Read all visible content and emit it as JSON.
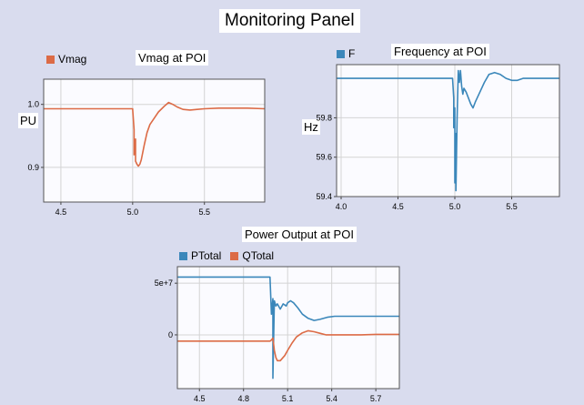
{
  "panel": {
    "title": "Monitoring Panel"
  },
  "colors": {
    "vmag": "#dc6b46",
    "freq": "#3b87ba",
    "ptotal": "#3b87ba",
    "qtotal": "#dc6b46",
    "plot_bg": "#fbfbff",
    "grid": "#d4d4d4"
  },
  "chart_data": [
    {
      "type": "line",
      "title": "Vmag at POI",
      "ylabel": "PU",
      "xlim": [
        4.38,
        5.92
      ],
      "ylim": [
        0.845,
        1.04
      ],
      "xticks": [
        4.5,
        5.0,
        5.5
      ],
      "xtick_labels": [
        "4.5",
        "5.0",
        "5.5"
      ],
      "yticks": [
        0.9,
        1.0
      ],
      "ytick_labels": [
        "0.9",
        "1.0"
      ],
      "grid": true,
      "legend_position": "top-left",
      "series": [
        {
          "name": "Vmag",
          "color": "#dc6b46",
          "x": [
            4.38,
            5.0,
            5.01,
            5.01,
            5.02,
            5.02,
            5.03,
            5.04,
            5.05,
            5.06,
            5.08,
            5.1,
            5.12,
            5.15,
            5.18,
            5.22,
            5.25,
            5.28,
            5.31,
            5.35,
            5.4,
            5.45,
            5.5,
            5.6,
            5.7,
            5.8,
            5.92
          ],
          "y": [
            0.993,
            0.993,
            0.96,
            0.92,
            0.945,
            0.91,
            0.905,
            0.902,
            0.905,
            0.912,
            0.935,
            0.955,
            0.968,
            0.978,
            0.988,
            0.997,
            1.003,
            1.0,
            0.996,
            0.992,
            0.991,
            0.992,
            0.993,
            0.994,
            0.994,
            0.994,
            0.993
          ]
        }
      ]
    },
    {
      "type": "line",
      "title": "Frequency at POI",
      "ylabel": "Hz",
      "xlim": [
        3.96,
        5.92
      ],
      "ylim": [
        59.4,
        60.07
      ],
      "xticks": [
        4.0,
        4.5,
        5.0,
        5.5
      ],
      "xtick_labels": [
        "4.0",
        "4.5",
        "5.0",
        "5.5"
      ],
      "yticks": [
        59.4,
        59.6,
        59.8
      ],
      "ytick_labels": [
        "59.4",
        "59.6",
        "59.8"
      ],
      "grid": true,
      "legend_position": "top-left",
      "series": [
        {
          "name": "F",
          "color": "#3b87ba",
          "x": [
            3.96,
            4.98,
            4.99,
            4.99,
            5.0,
            5.0,
            5.01,
            5.01,
            5.02,
            5.03,
            5.04,
            5.05,
            5.06,
            5.07,
            5.08,
            5.1,
            5.12,
            5.14,
            5.16,
            5.18,
            5.22,
            5.26,
            5.3,
            5.35,
            5.4,
            5.45,
            5.5,
            5.55,
            5.6,
            5.7,
            5.8,
            5.92
          ],
          "y": [
            60.0,
            60.0,
            59.9,
            59.75,
            59.85,
            59.47,
            59.72,
            59.43,
            59.8,
            60.04,
            59.98,
            60.04,
            59.96,
            59.92,
            59.95,
            59.93,
            59.9,
            59.87,
            59.85,
            59.88,
            59.93,
            59.98,
            60.02,
            60.03,
            60.02,
            60.0,
            59.99,
            59.99,
            60.0,
            60.0,
            60.0,
            60.0
          ]
        }
      ]
    },
    {
      "type": "line",
      "title": "Power Output at POI",
      "xlim": [
        4.35,
        5.86
      ],
      "ylim": [
        -52000000,
        66000000
      ],
      "xticks": [
        4.5,
        4.8,
        5.1,
        5.4,
        5.7
      ],
      "xtick_labels": [
        "4.5",
        "4.8",
        "5.1",
        "5.4",
        "5.7"
      ],
      "yticks": [
        0,
        50000000
      ],
      "ytick_labels": [
        "0",
        "5e+7"
      ],
      "grid": true,
      "legend_position": "top-left",
      "series": [
        {
          "name": "PTotal",
          "color": "#3b87ba",
          "x": [
            4.35,
            4.98,
            4.99,
            5.0,
            5.0,
            5.01,
            5.02,
            5.03,
            5.05,
            5.07,
            5.09,
            5.1,
            5.12,
            5.14,
            5.17,
            5.2,
            5.24,
            5.28,
            5.32,
            5.37,
            5.42,
            5.5,
            5.6,
            5.7,
            5.86
          ],
          "y": [
            56000000,
            56000000,
            20000000,
            35000000,
            -42000000,
            33000000,
            28000000,
            30000000,
            25000000,
            30000000,
            28000000,
            31000000,
            33000000,
            31000000,
            26000000,
            20000000,
            16000000,
            14000000,
            15000000,
            17000000,
            18000000,
            18000000,
            18000000,
            18000000,
            18000000
          ]
        },
        {
          "name": "QTotal",
          "color": "#dc6b46",
          "x": [
            4.35,
            4.98,
            4.99,
            5.0,
            5.01,
            5.02,
            5.03,
            5.05,
            5.08,
            5.1,
            5.13,
            5.16,
            5.2,
            5.24,
            5.28,
            5.32,
            5.36,
            5.4,
            5.5,
            5.6,
            5.7,
            5.86
          ],
          "y": [
            -6000000,
            -6000000,
            -5000000,
            -3000000,
            -15000000,
            -22000000,
            -25000000,
            -25000000,
            -20000000,
            -15000000,
            -8000000,
            -2000000,
            2000000,
            4000000,
            3000000,
            1500000,
            0,
            0,
            0,
            0,
            500000,
            500000
          ]
        }
      ]
    }
  ]
}
